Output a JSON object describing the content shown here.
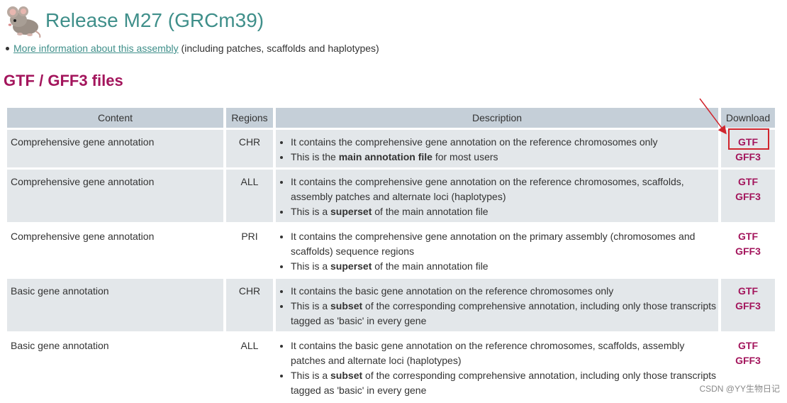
{
  "header": {
    "title": "Release M27 (GRCm39)",
    "logo_icon": "mouse-logo-icon"
  },
  "info": {
    "link_text": "More information about this assembly",
    "suffix": " (including patches, scaffolds and haplotypes)"
  },
  "section": {
    "title": "GTF / GFF3 files"
  },
  "table": {
    "headers": {
      "content": "Content",
      "regions": "Regions",
      "description": "Description",
      "download": "Download"
    },
    "rows": [
      {
        "content": "Comprehensive gene annotation",
        "region": "CHR",
        "desc": [
          {
            "pre": "It contains the comprehensive gene annotation on the reference chromosomes only",
            "bold": "",
            "post": ""
          },
          {
            "pre": "This is the ",
            "bold": "main annotation file",
            "post": " for most users"
          }
        ],
        "links": [
          "GTF",
          "GFF3"
        ]
      },
      {
        "content": "Comprehensive gene annotation",
        "region": "ALL",
        "desc": [
          {
            "pre": "It contains the comprehensive gene annotation on the reference chromosomes, scaffolds, assembly patches and alternate loci (haplotypes)",
            "bold": "",
            "post": ""
          },
          {
            "pre": "This is a ",
            "bold": "superset",
            "post": " of the main annotation file"
          }
        ],
        "links": [
          "GTF",
          "GFF3"
        ]
      },
      {
        "content": "Comprehensive gene annotation",
        "region": "PRI",
        "desc": [
          {
            "pre": "It contains the comprehensive gene annotation on the primary assembly (chromosomes and scaffolds) sequence regions",
            "bold": "",
            "post": ""
          },
          {
            "pre": "This is a ",
            "bold": "superset",
            "post": " of the main annotation file"
          }
        ],
        "links": [
          "GTF",
          "GFF3"
        ]
      },
      {
        "content": "Basic gene annotation",
        "region": "CHR",
        "desc": [
          {
            "pre": "It contains the basic gene annotation on the reference chromosomes only",
            "bold": "",
            "post": ""
          },
          {
            "pre": "This is a ",
            "bold": "subset",
            "post": " of the corresponding comprehensive annotation, including only those transcripts tagged as 'basic' in every gene"
          }
        ],
        "links": [
          "GTF",
          "GFF3"
        ]
      },
      {
        "content": "Basic gene annotation",
        "region": "ALL",
        "desc": [
          {
            "pre": "It contains the basic gene annotation on the reference chromosomes, scaffolds, assembly patches and alternate loci (haplotypes)",
            "bold": "",
            "post": ""
          },
          {
            "pre": "This is a ",
            "bold": "subset",
            "post": " of the corresponding comprehensive annotation, including only those transcripts tagged as 'basic' in every gene"
          }
        ],
        "links": [
          "GTF",
          "GFF3"
        ]
      }
    ]
  },
  "watermark": "CSDN @YY生物日记",
  "colors": {
    "title": "#3f8f8a",
    "accent": "#a3155c",
    "header_bg": "#c5cfd8",
    "row_shade": "#e3e7ea",
    "highlight": "#d0252d"
  }
}
